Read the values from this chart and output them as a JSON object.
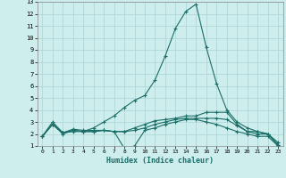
{
  "xlabel": "Humidex (Indice chaleur)",
  "xlim": [
    -0.5,
    23.5
  ],
  "ylim": [
    1,
    13
  ],
  "yticks": [
    1,
    2,
    3,
    4,
    5,
    6,
    7,
    8,
    9,
    10,
    11,
    12,
    13
  ],
  "xticks": [
    0,
    1,
    2,
    3,
    4,
    5,
    6,
    7,
    8,
    9,
    10,
    11,
    12,
    13,
    14,
    15,
    16,
    17,
    18,
    19,
    20,
    21,
    22,
    23
  ],
  "bg_color": "#ceeeed",
  "grid_color": "#aad4d2",
  "line_color": "#1a6e68",
  "lines": [
    {
      "x": [
        0,
        1,
        2,
        3,
        4,
        5,
        6,
        7,
        8,
        9,
        10,
        11,
        12,
        13,
        14,
        15,
        16,
        17,
        18,
        19,
        20,
        21,
        22,
        23
      ],
      "y": [
        1.8,
        2.8,
        2.1,
        2.2,
        2.2,
        2.5,
        3.0,
        3.5,
        4.2,
        4.8,
        5.2,
        6.5,
        8.5,
        10.8,
        12.2,
        12.8,
        9.2,
        6.2,
        4.0,
        3.0,
        2.5,
        2.2,
        2.0,
        1.1
      ]
    },
    {
      "x": [
        0,
        1,
        2,
        3,
        4,
        5,
        6,
        7,
        8,
        9,
        10,
        11,
        12,
        13,
        14,
        15,
        16,
        17,
        18,
        19,
        20,
        21,
        22,
        23
      ],
      "y": [
        1.8,
        3.0,
        2.1,
        2.4,
        2.3,
        2.3,
        2.3,
        2.2,
        2.2,
        2.5,
        2.8,
        3.1,
        3.2,
        3.3,
        3.5,
        3.5,
        3.8,
        3.8,
        3.8,
        2.8,
        2.2,
        2.2,
        2.0,
        1.3
      ]
    },
    {
      "x": [
        0,
        1,
        2,
        3,
        4,
        5,
        6,
        7,
        8,
        9,
        10,
        11,
        12,
        13,
        14,
        15,
        16,
        17,
        18,
        19,
        20,
        21,
        22,
        23
      ],
      "y": [
        1.8,
        2.8,
        2.0,
        2.3,
        2.2,
        2.2,
        2.3,
        2.2,
        2.2,
        2.3,
        2.5,
        2.8,
        3.0,
        3.2,
        3.3,
        3.3,
        3.3,
        3.3,
        3.2,
        2.7,
        2.2,
        2.0,
        2.0,
        1.1
      ]
    },
    {
      "x": [
        0,
        1,
        2,
        3,
        4,
        5,
        6,
        7,
        8,
        9,
        10,
        11,
        12,
        13,
        14,
        15,
        16,
        17,
        18,
        19,
        20,
        21,
        22,
        23
      ],
      "y": [
        1.8,
        2.8,
        2.1,
        2.3,
        2.2,
        2.2,
        2.3,
        2.2,
        0.8,
        1.0,
        2.3,
        2.5,
        2.8,
        3.0,
        3.2,
        3.2,
        3.0,
        2.8,
        2.5,
        2.2,
        2.0,
        1.8,
        1.8,
        1.0
      ]
    }
  ]
}
